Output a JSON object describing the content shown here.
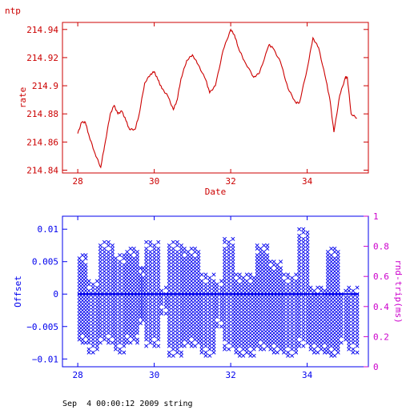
{
  "chart_data": [
    {
      "type": "line",
      "title": "ntp",
      "xlabel": "Date",
      "ylabel": "rate",
      "xlim": [
        27.6,
        35.6
      ],
      "ylim": [
        214.838,
        214.945
      ],
      "x_ticks": [
        "28",
        "30",
        "32",
        "34"
      ],
      "x_tick_values": [
        28,
        30,
        32,
        34
      ],
      "y_ticks": [
        "214.84",
        "214.86",
        "214.88",
        "214.9",
        "214.92",
        "214.94"
      ],
      "y_tick_values": [
        214.84,
        214.86,
        214.88,
        214.9,
        214.92,
        214.94
      ],
      "color": "#cc0000",
      "x": [
        28.0,
        28.1,
        28.2,
        28.3,
        28.45,
        28.6,
        28.7,
        28.85,
        28.95,
        29.05,
        29.15,
        29.25,
        29.35,
        29.5,
        29.6,
        29.75,
        29.9,
        30.0,
        30.1,
        30.2,
        30.35,
        30.5,
        30.6,
        30.7,
        30.85,
        31.0,
        31.15,
        31.35,
        31.45,
        31.6,
        31.8,
        32.0,
        32.1,
        32.2,
        32.35,
        32.6,
        32.75,
        33.0,
        33.1,
        33.3,
        33.5,
        33.7,
        33.8,
        34.0,
        34.15,
        34.3,
        34.5,
        34.6,
        34.7,
        34.85,
        35.0,
        35.05,
        35.15,
        35.3
      ],
      "y": [
        214.866,
        214.874,
        214.874,
        214.864,
        214.852,
        214.842,
        214.857,
        214.88,
        214.886,
        214.88,
        214.882,
        214.876,
        214.869,
        214.869,
        214.879,
        214.902,
        214.908,
        214.91,
        214.904,
        214.898,
        214.893,
        214.883,
        214.89,
        214.905,
        214.918,
        214.922,
        214.915,
        214.904,
        214.895,
        214.9,
        214.925,
        214.94,
        214.936,
        214.927,
        214.918,
        214.906,
        214.909,
        214.929,
        214.927,
        214.917,
        214.898,
        214.888,
        214.888,
        214.912,
        214.934,
        214.927,
        214.903,
        214.889,
        214.867,
        214.893,
        214.906,
        214.906,
        214.88,
        214.877
      ]
    },
    {
      "type": "scatter",
      "xlabel": "",
      "ylabel": "Offset",
      "ylabel_right": "rnd-trip(ms)",
      "marker": "x",
      "color": "#0000ee",
      "xlim": [
        27.6,
        35.6
      ],
      "ylim": [
        -0.0112,
        0.012
      ],
      "ylim_right": [
        0,
        1
      ],
      "x_ticks": [
        "28",
        "30",
        "32",
        "34"
      ],
      "x_tick_values": [
        28,
        30,
        32,
        34
      ],
      "y_ticks": [
        "−0.01",
        "−0.005",
        "0",
        "0.005",
        "0.01"
      ],
      "y_tick_values": [
        -0.01,
        -0.005,
        0,
        0.005,
        0.01
      ],
      "y_ticks_right": [
        "0",
        "0.2",
        "0.4",
        "0.6",
        "0.8",
        "1"
      ],
      "y_tick_values_right": [
        0,
        0.2,
        0.4,
        0.6,
        0.8,
        1
      ],
      "bands": [
        {
          "x": [
            28.0,
            28.25
          ],
          "ymin": -0.0075,
          "ymax": 0.006
        },
        {
          "x": [
            28.25,
            28.55
          ],
          "ymin": -0.009,
          "ymax": 0.002
        },
        {
          "x": [
            28.55,
            28.95
          ],
          "ymin": -0.0075,
          "ymax": 0.008
        },
        {
          "x": [
            28.95,
            29.25
          ],
          "ymin": -0.009,
          "ymax": 0.006
        },
        {
          "x": [
            29.25,
            29.6
          ],
          "ymin": -0.0075,
          "ymax": 0.007
        },
        {
          "x": [
            29.6,
            29.75
          ],
          "ymin": -0.0045,
          "ymax": 0.004
        },
        {
          "x": [
            29.75,
            30.15
          ],
          "ymin": -0.008,
          "ymax": 0.008
        },
        {
          "x": [
            30.15,
            30.35
          ],
          "ymin": -0.003,
          "ymax": 0.001
        },
        {
          "x": [
            30.35,
            30.75
          ],
          "ymin": -0.0095,
          "ymax": 0.008
        },
        {
          "x": [
            30.75,
            31.2
          ],
          "ymin": -0.008,
          "ymax": 0.007
        },
        {
          "x": [
            31.2,
            31.6
          ],
          "ymin": -0.0095,
          "ymax": 0.003
        },
        {
          "x": [
            31.6,
            31.8
          ],
          "ymin": -0.005,
          "ymax": 0.002
        },
        {
          "x": [
            31.8,
            32.1
          ],
          "ymin": -0.0085,
          "ymax": 0.0085
        },
        {
          "x": [
            32.1,
            32.65
          ],
          "ymin": -0.0095,
          "ymax": 0.003
        },
        {
          "x": [
            32.65,
            33.0
          ],
          "ymin": -0.0085,
          "ymax": 0.0075
        },
        {
          "x": [
            33.0,
            33.35
          ],
          "ymin": -0.009,
          "ymax": 0.005
        },
        {
          "x": [
            33.35,
            33.75
          ],
          "ymin": -0.0095,
          "ymax": 0.003
        },
        {
          "x": [
            33.75,
            34.05
          ],
          "ymin": -0.008,
          "ymax": 0.01
        },
        {
          "x": [
            34.05,
            34.5
          ],
          "ymin": -0.009,
          "ymax": 0.001
        },
        {
          "x": [
            34.5,
            34.85
          ],
          "ymin": -0.0095,
          "ymax": 0.007
        },
        {
          "x": [
            34.85,
            35.05
          ],
          "ymin": -0.0075,
          "ymax": 0.0005
        },
        {
          "x": [
            35.05,
            35.35
          ],
          "ymin": -0.009,
          "ymax": 0.001
        }
      ]
    }
  ],
  "footer": "Sep  4 00:00:12 2009 string"
}
